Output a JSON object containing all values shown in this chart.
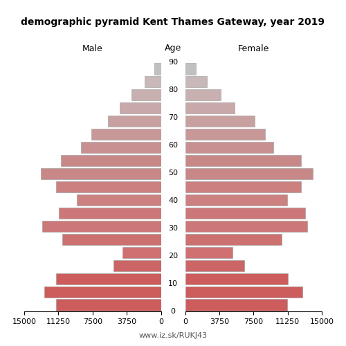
{
  "title": "demographic pyramid Kent Thames Gateway, year 2019",
  "label_male": "Male",
  "label_female": "Female",
  "label_age": "Age",
  "age_groups": [
    0,
    5,
    10,
    15,
    20,
    25,
    30,
    35,
    40,
    45,
    50,
    55,
    60,
    65,
    70,
    75,
    80,
    85,
    90
  ],
  "age_ticks": [
    0,
    10,
    20,
    30,
    40,
    50,
    60,
    70,
    80,
    90
  ],
  "male": [
    11500,
    12800,
    11500,
    5200,
    4200,
    10800,
    13000,
    11200,
    9200,
    11500,
    13200,
    11000,
    8800,
    7600,
    5800,
    4500,
    3200,
    1800,
    700
  ],
  "female": [
    11200,
    12900,
    11300,
    6500,
    5200,
    10600,
    13400,
    13200,
    11200,
    12700,
    14000,
    12700,
    9700,
    8800,
    7600,
    5400,
    3900,
    2400,
    1200
  ],
  "xlim": 15000,
  "xticks": [
    0,
    3750,
    7500,
    11250,
    15000
  ],
  "age_colors": {
    "0": "#cd5c5c",
    "5": "#cd5c5c",
    "10": "#cd5c5c",
    "15": "#cc6565",
    "20": "#d07070",
    "25": "#cc7070",
    "30": "#cc7878",
    "35": "#cc7878",
    "40": "#cc8080",
    "45": "#cc8080",
    "50": "#c88888",
    "55": "#c88888",
    "60": "#c89090",
    "65": "#c89898",
    "70": "#c8a0a0",
    "75": "#c8a8a8",
    "80": "#c8b0b0",
    "85": "#c8b8b8",
    "90": "#c0c0c0"
  },
  "background_color": "#ffffff",
  "footer": "www.iz.sk/RUKJ43",
  "bar_height": 0.85,
  "edgecolor": "#999999",
  "edgewidth": 0.4
}
